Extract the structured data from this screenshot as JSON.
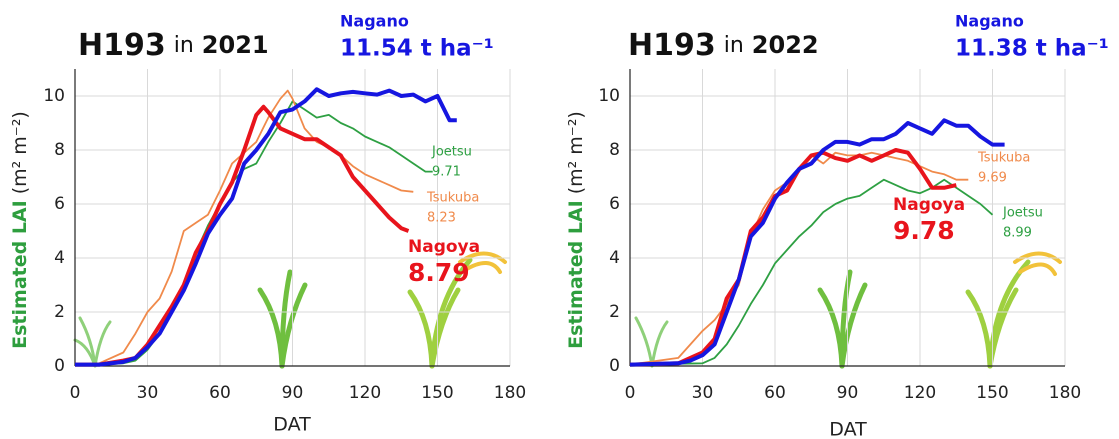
{
  "chart_data": [
    {
      "type": "line",
      "title": [
        "H193",
        "in",
        "2021"
      ],
      "ylabel": "Estimated LAI",
      "ylabel_unit": "(m² m⁻²)",
      "xlabel": "DAT",
      "xlim": [
        0,
        180
      ],
      "ylim": [
        0,
        11
      ],
      "xticks": [
        0,
        30,
        60,
        90,
        120,
        150,
        180
      ],
      "yticks": [
        0,
        2,
        4,
        6,
        8,
        10
      ],
      "grid": true,
      "series": [
        {
          "name": "Joetsu",
          "color": "#2ea043",
          "yield": 9.71,
          "x": [
            0,
            10,
            20,
            25,
            30,
            35,
            40,
            45,
            50,
            55,
            60,
            65,
            70,
            75,
            80,
            85,
            90,
            95,
            100,
            105,
            110,
            115,
            120,
            125,
            130,
            135,
            140,
            145,
            148
          ],
          "values": [
            0.05,
            0.05,
            0.1,
            0.2,
            0.6,
            1.2,
            2.0,
            3.0,
            4.2,
            5.2,
            6.0,
            6.8,
            7.3,
            7.5,
            8.3,
            9.0,
            9.8,
            9.5,
            9.2,
            9.3,
            9.0,
            8.8,
            8.5,
            8.3,
            8.1,
            7.8,
            7.5,
            7.2,
            7.2
          ]
        },
        {
          "name": "Tsukuba",
          "color": "#f08a4b",
          "yield": 8.23,
          "x": [
            0,
            10,
            20,
            25,
            30,
            35,
            40,
            45,
            50,
            55,
            60,
            65,
            70,
            75,
            80,
            85,
            88,
            90,
            95,
            100,
            105,
            110,
            115,
            120,
            125,
            130,
            135,
            140
          ],
          "values": [
            0.05,
            0.1,
            0.5,
            1.2,
            2.0,
            2.5,
            3.5,
            5.0,
            5.3,
            5.6,
            6.5,
            7.5,
            7.9,
            8.3,
            9.2,
            9.9,
            10.2,
            9.9,
            8.8,
            8.3,
            8.1,
            7.8,
            7.4,
            7.1,
            6.9,
            6.7,
            6.5,
            6.45
          ]
        },
        {
          "name": "Nagoya",
          "color": "#e8141c",
          "yield": 8.79,
          "x": [
            0,
            10,
            20,
            25,
            30,
            35,
            40,
            45,
            50,
            55,
            60,
            65,
            70,
            75,
            78,
            80,
            85,
            90,
            95,
            100,
            105,
            110,
            115,
            120,
            125,
            130,
            135,
            138
          ],
          "values": [
            0.05,
            0.05,
            0.2,
            0.3,
            0.8,
            1.5,
            2.2,
            3.0,
            4.2,
            5.0,
            6.0,
            6.8,
            8.0,
            9.3,
            9.6,
            9.4,
            8.8,
            8.6,
            8.4,
            8.4,
            8.1,
            7.8,
            7.0,
            6.5,
            6.0,
            5.5,
            5.1,
            5.0
          ]
        },
        {
          "name": "Nagano",
          "color": "#1616e0",
          "yield": 11.54,
          "yield_label": "11.54 t ha⁻¹",
          "x": [
            0,
            10,
            20,
            25,
            30,
            35,
            40,
            45,
            50,
            55,
            60,
            65,
            70,
            75,
            80,
            85,
            90,
            95,
            100,
            105,
            110,
            115,
            120,
            125,
            130,
            135,
            140,
            145,
            150,
            155,
            158
          ],
          "values": [
            0.05,
            0.05,
            0.15,
            0.3,
            0.7,
            1.2,
            2.0,
            2.8,
            3.8,
            4.9,
            5.6,
            6.2,
            7.5,
            8.0,
            8.6,
            9.4,
            9.5,
            9.8,
            10.25,
            10.0,
            10.1,
            10.15,
            10.1,
            10.05,
            10.2,
            10.0,
            10.05,
            9.8,
            10.0,
            9.1,
            9.1
          ]
        }
      ]
    },
    {
      "type": "line",
      "title": [
        "H193",
        "in",
        "2022"
      ],
      "ylabel": "Estimated LAI",
      "ylabel_unit": "(m² m⁻²)",
      "xlabel": "DAT",
      "xlim": [
        0,
        180
      ],
      "ylim": [
        0,
        11
      ],
      "xticks": [
        0,
        30,
        60,
        90,
        120,
        150,
        180
      ],
      "yticks": [
        0,
        2,
        4,
        6,
        8,
        10
      ],
      "grid": true,
      "series": [
        {
          "name": "Joetsu",
          "color": "#2ea043",
          "yield": 8.99,
          "x": [
            0,
            30,
            35,
            40,
            45,
            50,
            55,
            60,
            65,
            70,
            75,
            80,
            85,
            90,
            95,
            100,
            105,
            110,
            115,
            120,
            125,
            130,
            135,
            140,
            145,
            150
          ],
          "values": [
            0.05,
            0.1,
            0.3,
            0.8,
            1.5,
            2.3,
            3.0,
            3.8,
            4.3,
            4.8,
            5.2,
            5.7,
            6.0,
            6.2,
            6.3,
            6.6,
            6.9,
            6.7,
            6.5,
            6.4,
            6.6,
            6.9,
            6.6,
            6.3,
            6.0,
            5.6
          ]
        },
        {
          "name": "Tsukuba",
          "color": "#f08a4b",
          "yield": 9.69,
          "x": [
            0,
            20,
            25,
            30,
            35,
            40,
            45,
            50,
            55,
            60,
            65,
            70,
            75,
            80,
            85,
            90,
            95,
            100,
            105,
            110,
            115,
            120,
            125,
            130,
            135,
            140
          ],
          "values": [
            0.05,
            0.3,
            0.8,
            1.3,
            1.7,
            2.3,
            3.0,
            4.8,
            5.8,
            6.5,
            6.8,
            7.2,
            7.8,
            7.5,
            7.9,
            7.8,
            7.8,
            7.9,
            7.8,
            7.7,
            7.6,
            7.4,
            7.2,
            7.1,
            6.9,
            6.9
          ]
        },
        {
          "name": "Nagoya",
          "color": "#e8141c",
          "yield": 9.78,
          "x": [
            0,
            20,
            30,
            35,
            40,
            45,
            50,
            55,
            60,
            65,
            70,
            75,
            80,
            85,
            90,
            95,
            100,
            105,
            110,
            115,
            120,
            125,
            130,
            135
          ],
          "values": [
            0.05,
            0.1,
            0.5,
            1.0,
            2.5,
            3.2,
            5.0,
            5.5,
            6.3,
            6.5,
            7.3,
            7.8,
            7.9,
            7.7,
            7.6,
            7.8,
            7.6,
            7.8,
            8.0,
            7.9,
            7.3,
            6.6,
            6.6,
            6.7
          ]
        },
        {
          "name": "Nagano",
          "color": "#1616e0",
          "yield": 11.38,
          "yield_label": "11.38 t ha⁻¹",
          "x": [
            0,
            20,
            25,
            30,
            35,
            40,
            45,
            50,
            55,
            60,
            65,
            70,
            75,
            80,
            85,
            90,
            95,
            100,
            105,
            110,
            115,
            120,
            125,
            130,
            135,
            140,
            145,
            150,
            155
          ],
          "values": [
            0.05,
            0.1,
            0.2,
            0.4,
            0.8,
            2.0,
            3.2,
            4.8,
            5.3,
            6.2,
            6.8,
            7.3,
            7.5,
            8.0,
            8.3,
            8.3,
            8.2,
            8.4,
            8.4,
            8.6,
            9.0,
            8.8,
            8.6,
            9.1,
            8.9,
            8.9,
            8.5,
            8.2,
            8.2
          ]
        }
      ]
    }
  ]
}
